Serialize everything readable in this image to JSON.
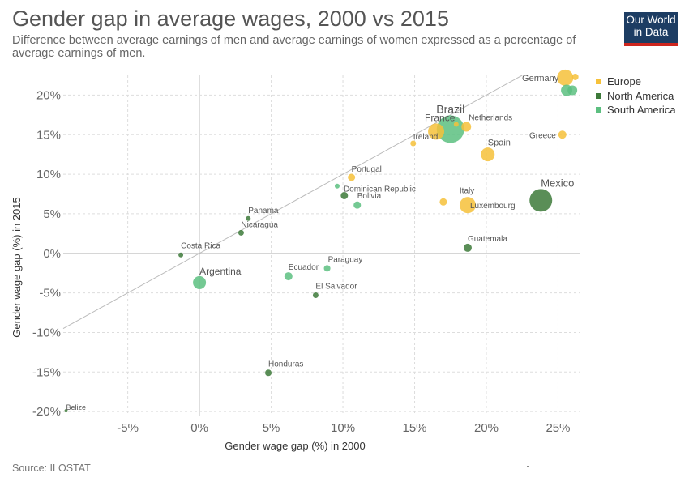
{
  "header": {
    "title": "Gender gap in average wages, 2000 vs 2015",
    "subtitle": "Difference between average earnings of men and average earnings of women expressed as a percentage of average earnings of men."
  },
  "logo": {
    "line1": "Our World",
    "line2": "in Data"
  },
  "footer": {
    "source": "Source: ILOSTAT"
  },
  "legend": [
    {
      "name": "Europe",
      "color": "#f6c13a"
    },
    {
      "name": "North America",
      "color": "#3d7a3a"
    },
    {
      "name": "South America",
      "color": "#5cbf80"
    }
  ],
  "chart_data": {
    "type": "scatter",
    "title": "Gender gap in average wages, 2000 vs 2015",
    "xlabel": "Gender wage gap (%) in 2000",
    "ylabel": "Gender wage gap (%) in 2015",
    "xlim": [
      -9.5,
      26.5
    ],
    "ylim": [
      -20.5,
      22.5
    ],
    "xticks": [
      -5,
      0,
      5,
      10,
      15,
      20,
      25
    ],
    "yticks": [
      -20,
      -15,
      -10,
      -5,
      0,
      5,
      10,
      15,
      20
    ],
    "xtick_labels": [
      "-5%",
      "0%",
      "5%",
      "10%",
      "15%",
      "20%",
      "25%"
    ],
    "ytick_labels": [
      "-20%",
      "-15%",
      "-10%",
      "-5%",
      "0%",
      "5%",
      "10%",
      "15%",
      "20%"
    ],
    "grid": true,
    "diagonal": true,
    "legend_position": "top-right",
    "colors": {
      "Europe": "#f6c13a",
      "North America": "#3d7a3a",
      "South America": "#5cbf80"
    },
    "points": [
      {
        "label": "Germany",
        "region": "Europe",
        "x": 25.5,
        "y": 22.2,
        "r": 10
      },
      {
        "label": "",
        "region": "Europe",
        "x": 26.2,
        "y": 22.3,
        "r": 4
      },
      {
        "label": "",
        "region": "South America",
        "x": 25.6,
        "y": 20.6,
        "r": 7
      },
      {
        "label": "",
        "region": "South America",
        "x": 26.0,
        "y": 20.6,
        "r": 6
      },
      {
        "label": "Brazil",
        "region": "South America",
        "x": 17.5,
        "y": 15.7,
        "r": 17
      },
      {
        "label": "France",
        "region": "Europe",
        "x": 16.5,
        "y": 15.4,
        "r": 10
      },
      {
        "label": "Netherlands",
        "region": "Europe",
        "x": 18.6,
        "y": 16.0,
        "r": 6
      },
      {
        "label": "",
        "region": "Europe",
        "x": 17.9,
        "y": 16.3,
        "r": 3
      },
      {
        "label": "Greece",
        "region": "Europe",
        "x": 25.3,
        "y": 15.0,
        "r": 5
      },
      {
        "label": "Ireland",
        "region": "Europe",
        "x": 14.9,
        "y": 13.9,
        "r": 3.5
      },
      {
        "label": "Spain",
        "region": "Europe",
        "x": 20.1,
        "y": 12.5,
        "r": 8.5
      },
      {
        "label": "Mexico",
        "region": "North America",
        "x": 23.8,
        "y": 6.7,
        "r": 14
      },
      {
        "label": "Portugal",
        "region": "Europe",
        "x": 10.6,
        "y": 9.6,
        "r": 4.5
      },
      {
        "label": "Dominican Republic",
        "region": "South America",
        "x": 9.6,
        "y": 8.5,
        "r": 3
      },
      {
        "label": "",
        "region": "North America",
        "x": 10.1,
        "y": 7.3,
        "r": 4.5
      },
      {
        "label": "Bolivia",
        "region": "South America",
        "x": 11.0,
        "y": 6.1,
        "r": 4.5
      },
      {
        "label": "Italy",
        "region": "Europe",
        "x": 17.0,
        "y": 6.5,
        "r": 4.5
      },
      {
        "label": "Luxembourg",
        "region": "Europe",
        "x": 18.7,
        "y": 6.1,
        "r": 10
      },
      {
        "label": "Panama",
        "region": "North America",
        "x": 3.4,
        "y": 4.4,
        "r": 3
      },
      {
        "label": "Nicaragua",
        "region": "North America",
        "x": 2.9,
        "y": 2.6,
        "r": 3.5
      },
      {
        "label": "Guatemala",
        "region": "North America",
        "x": 18.7,
        "y": 0.7,
        "r": 5
      },
      {
        "label": "Costa Rica",
        "region": "North America",
        "x": -1.3,
        "y": -0.2,
        "r": 3
      },
      {
        "label": "Paraguay",
        "region": "South America",
        "x": 8.9,
        "y": -1.9,
        "r": 4
      },
      {
        "label": "Ecuador",
        "region": "South America",
        "x": 6.2,
        "y": -2.9,
        "r": 5
      },
      {
        "label": "Argentina",
        "region": "South America",
        "x": 0.0,
        "y": -3.7,
        "r": 8
      },
      {
        "label": "El Salvador",
        "region": "North America",
        "x": 8.1,
        "y": -5.3,
        "r": 3.5
      },
      {
        "label": "Honduras",
        "region": "North America",
        "x": 4.8,
        "y": -15.1,
        "r": 4
      },
      {
        "label": "Belize",
        "region": "North America",
        "x": -9.3,
        "y": -19.9,
        "r": 2
      }
    ]
  }
}
